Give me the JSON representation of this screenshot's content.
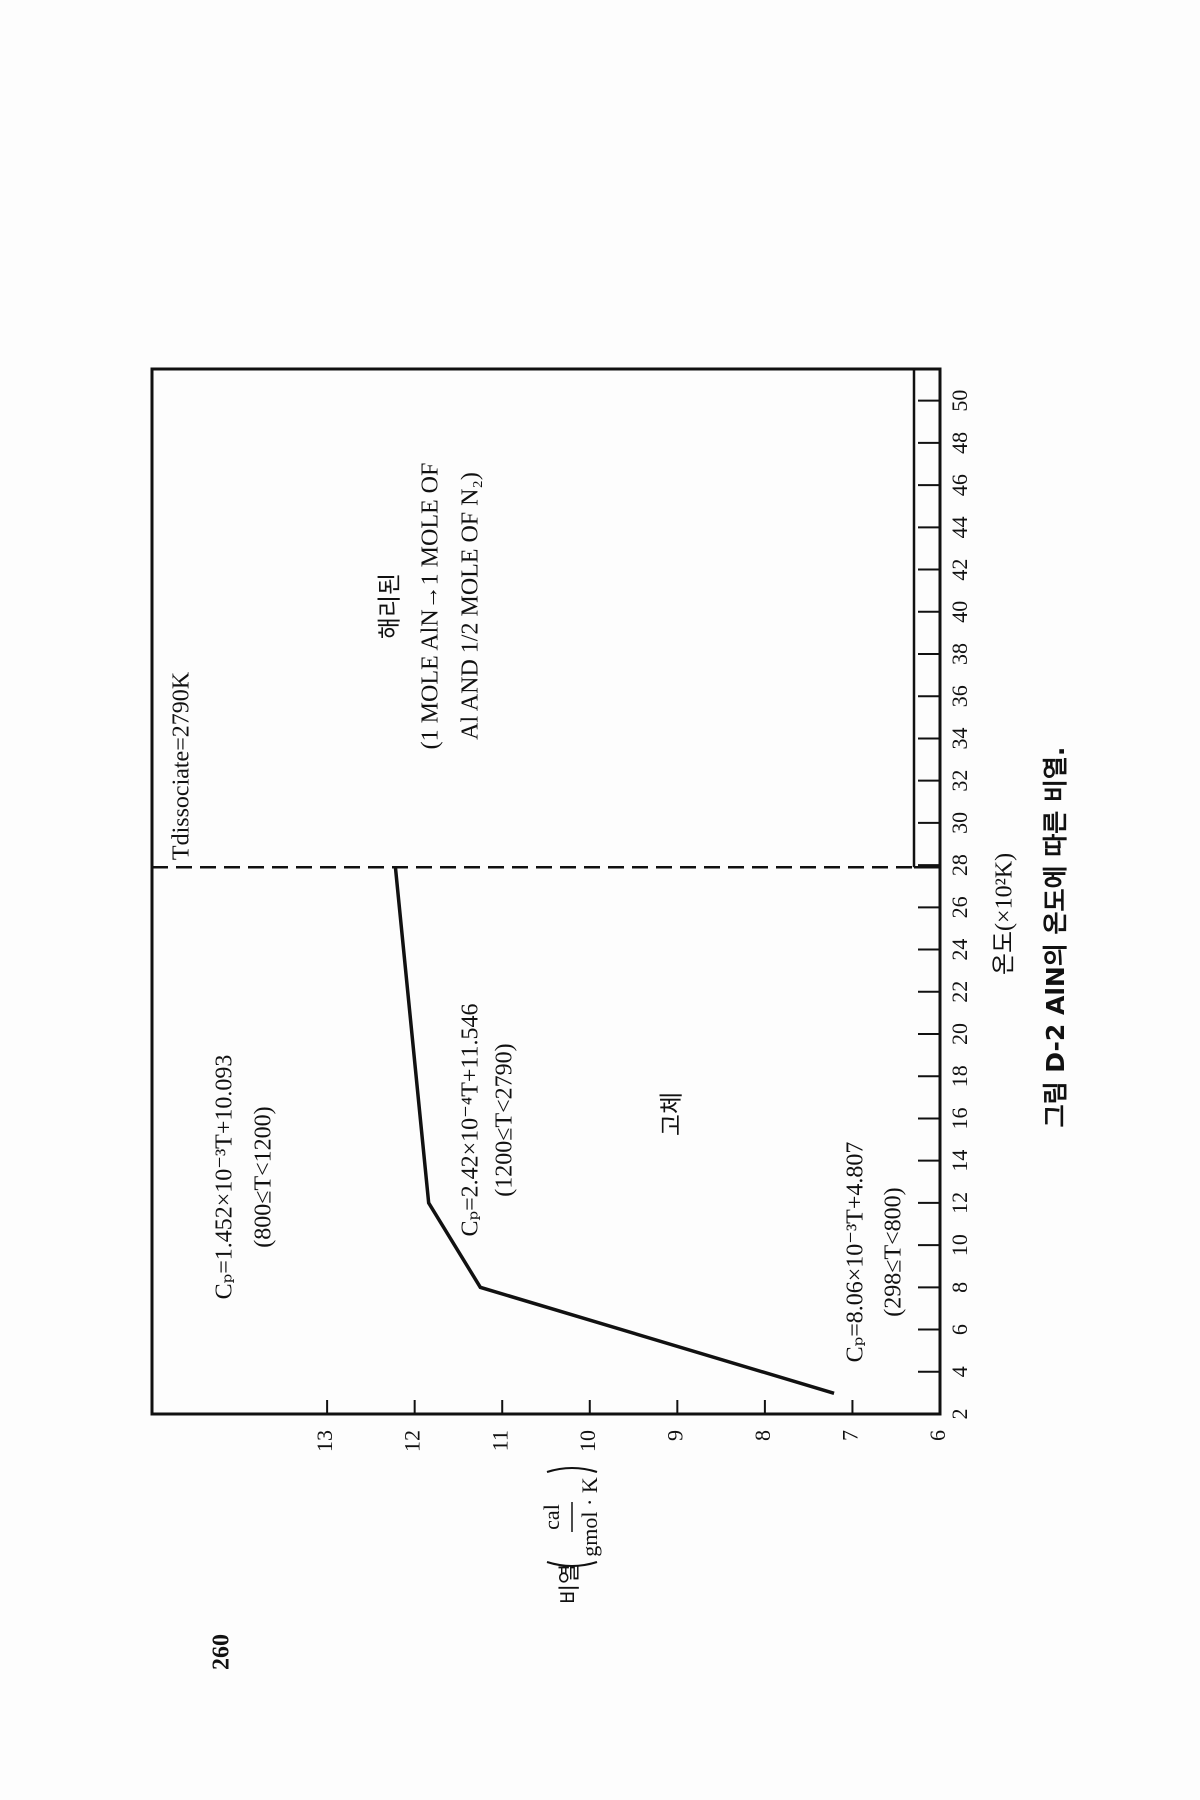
{
  "page_number": "260",
  "chart_data": {
    "type": "line",
    "x_label": "온도(×10²K)",
    "y_label": "비열",
    "y_label_fraction": [
      "cal",
      "gmol · K"
    ],
    "caption": "그림 D-2  AlN의 온도에 따른 비열.",
    "x": [
      2.98,
      8,
      12,
      27.9
    ],
    "values": [
      7.21,
      11.25,
      11.84,
      12.22
    ],
    "color": "#111111",
    "xlim": [
      2,
      51.5
    ],
    "xticks": [
      2,
      4,
      6,
      8,
      10,
      12,
      14,
      16,
      18,
      20,
      22,
      24,
      26,
      28,
      30,
      32,
      34,
      36,
      38,
      40,
      42,
      44,
      46,
      48,
      50
    ],
    "ylim": [
      6,
      15
    ],
    "yticks": [
      6,
      7,
      8,
      9,
      10,
      11,
      12,
      13
    ],
    "vlines": [
      27.9
    ],
    "annotations": [
      "Cₚ=1.452×10⁻³T+10.093",
      "(800≤T<1200)",
      "Cₚ=2.42×10⁻⁴T+11.546",
      "(1200≤T<2790)",
      "Cₚ=8.06×10⁻³T+4.807",
      "(298≤T<800)",
      "고체",
      "해리된",
      "(1 MOLE AlN→1 MOLE OF",
      "Al AND 1/2 MOLE OF N₂)",
      "Tdissociate=2790K"
    ]
  }
}
